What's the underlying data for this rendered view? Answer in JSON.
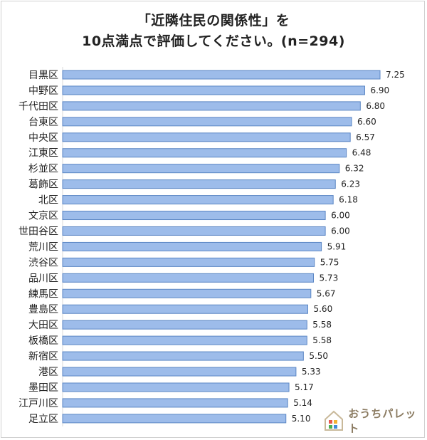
{
  "title_line1": "「近隣住民の関係性」を",
  "title_line2": "10点満点で評価してください。(n=294)",
  "brand": "おうちパレット",
  "colors": {
    "bar_fill": "#9dbcea",
    "bar_stroke": "#5b86c4",
    "grid": "#d9d9d9",
    "text": "#222222"
  },
  "chart_data": {
    "type": "bar",
    "orientation": "horizontal",
    "title": "「近隣住民の関係性」を10点満点で評価してください。(n=294)",
    "categories": [
      "目黒区",
      "中野区",
      "千代田区",
      "台東区",
      "中央区",
      "江東区",
      "杉並区",
      "葛飾区",
      "北区",
      "文京区",
      "世田谷区",
      "荒川区",
      "渋谷区",
      "品川区",
      "練馬区",
      "豊島区",
      "大田区",
      "板橋区",
      "新宿区",
      "港区",
      "墨田区",
      "江戸川区",
      "足立区"
    ],
    "values": [
      7.25,
      6.9,
      6.8,
      6.6,
      6.57,
      6.48,
      6.32,
      6.23,
      6.18,
      6.0,
      6.0,
      5.91,
      5.75,
      5.73,
      5.67,
      5.6,
      5.58,
      5.58,
      5.5,
      5.33,
      5.17,
      5.14,
      5.1
    ],
    "value_labels": [
      "7.25",
      "6.90",
      "6.80",
      "6.60",
      "6.57",
      "6.48",
      "6.32",
      "6.23",
      "6.18",
      "6.00",
      "6.00",
      "5.91",
      "5.75",
      "5.73",
      "5.67",
      "5.60",
      "5.58",
      "5.58",
      "5.50",
      "5.33",
      "5.17",
      "5.14",
      "5.10"
    ],
    "xlim": [
      0,
      7.25
    ],
    "grid": true,
    "legend": "none"
  }
}
